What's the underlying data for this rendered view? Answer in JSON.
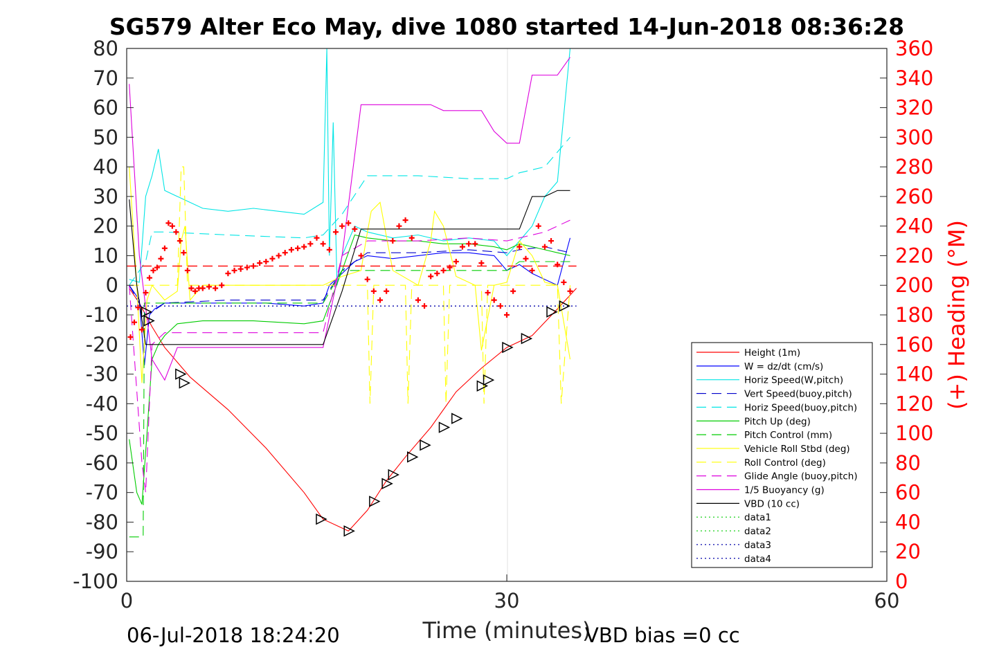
{
  "chart_data": {
    "type": "line",
    "title": "SG579 Alter Eco May, dive 1080 started 14-Jun-2018 08:36:28",
    "xlabel": "Time (minutes)",
    "ylabel": "",
    "ylabel_right": "(+) Heading (°M)",
    "xlim": [
      0,
      60
    ],
    "ylim": [
      -100,
      80
    ],
    "ylim_right": [
      0,
      360
    ],
    "x_ticks": [
      "0",
      "30",
      "60"
    ],
    "y_ticks": [
      "80",
      "70",
      "60",
      "50",
      "40",
      "30",
      "20",
      "10",
      "0",
      "-10",
      "-20",
      "-30",
      "-40",
      "-50",
      "-60",
      "-70",
      "-80",
      "-90",
      "-100"
    ],
    "y_ticks_right": [
      "360",
      "340",
      "320",
      "300",
      "280",
      "260",
      "240",
      "220",
      "200",
      "180",
      "160",
      "140",
      "120",
      "100",
      "80",
      "60",
      "40",
      "20",
      "0"
    ],
    "grid": "vertical at 30",
    "legend_position": "bottom-right",
    "footer_left": "06-Jul-2018 18:24:20",
    "footer_right": "VBD bias =0 cc",
    "series": [
      {
        "name": "Height (1m)",
        "color": "#ff0000",
        "style": "solid",
        "x": [
          0.2,
          1,
          2,
          3,
          5,
          8,
          11,
          14,
          15.5,
          17,
          17.5,
          19,
          20.5,
          22,
          24,
          26,
          28,
          30,
          32,
          34,
          35.5
        ],
        "y": [
          -1,
          -6,
          -14,
          -21,
          -31,
          -42,
          -55,
          -70,
          -79,
          -82,
          -83,
          -76,
          -66,
          -58,
          -48,
          -36,
          -28,
          -21,
          -17,
          -8,
          -1
        ]
      },
      {
        "name": "W = dz/dt (cm/s)",
        "color": "#0000ff",
        "style": "solid",
        "x": [
          0.2,
          1,
          1.4,
          1.8,
          2.2,
          3,
          5,
          8,
          11,
          14,
          15.5,
          16,
          17,
          18,
          19,
          21,
          23,
          25,
          27,
          29,
          30,
          31,
          32,
          33,
          34,
          34.5,
          35
        ],
        "y": [
          0,
          -5,
          -27,
          -10,
          -8,
          -6,
          -6,
          -6,
          -6,
          -7,
          -6,
          0,
          4,
          8,
          10,
          9,
          10,
          11,
          11,
          10,
          5,
          7,
          4,
          2,
          0,
          8,
          16
        ]
      },
      {
        "name": "Horiz Speed(W,pitch)",
        "color": "#00e5e5",
        "style": "solid",
        "x": [
          0.2,
          1,
          1.5,
          2,
          2.5,
          3,
          4,
          6,
          8,
          10,
          12,
          14,
          15.5,
          15.8,
          16,
          16.3,
          16.6,
          17,
          18,
          19,
          21,
          23,
          25,
          27,
          29,
          30,
          31,
          32,
          33,
          34,
          35
        ],
        "y": [
          2,
          1,
          30,
          37,
          46,
          32,
          30,
          26,
          25,
          26,
          25,
          24,
          28,
          80,
          10,
          55,
          0,
          10,
          20,
          18,
          16,
          17,
          15,
          16,
          15,
          10,
          15,
          20,
          30,
          35,
          80
        ]
      },
      {
        "name": "Vert Speed(buoy,pitch)",
        "color": "#0000cc",
        "style": "dashed",
        "x": [
          0.2,
          1.5,
          2,
          3,
          8,
          14,
          15.5,
          17,
          19,
          23,
          27,
          30,
          31,
          33,
          35
        ],
        "y": [
          0,
          -10,
          -9,
          -6,
          -5,
          -5,
          -5,
          5,
          11,
          11,
          12,
          11,
          12,
          13,
          11
        ]
      },
      {
        "name": "Horiz Speed(buoy,pitch)",
        "color": "#00e5e5",
        "style": "dashed",
        "x": [
          0.2,
          1.5,
          2,
          3,
          8,
          14,
          15.5,
          17,
          19,
          23,
          27,
          30,
          31,
          33,
          35
        ],
        "y": [
          0,
          8,
          18,
          18,
          17,
          16,
          17,
          24,
          37,
          37,
          36,
          36,
          38,
          40,
          50
        ]
      },
      {
        "name": "Pitch Up (deg)",
        "color": "#00cc00",
        "style": "solid",
        "x": [
          0.2,
          0.8,
          1.2,
          1.6,
          2,
          2.5,
          3,
          4,
          6,
          10,
          14,
          15.5,
          17,
          18,
          19,
          21,
          23,
          25,
          27,
          29,
          30,
          31,
          32,
          33,
          34,
          35
        ],
        "y": [
          -52,
          -70,
          -74,
          -50,
          -25,
          -20,
          -17,
          -13,
          -12,
          -12,
          -13,
          -12,
          5,
          17,
          16,
          15,
          15,
          14,
          14,
          13,
          12,
          14,
          13,
          12,
          11,
          10
        ]
      },
      {
        "name": "Pitch Control (mm)",
        "color": "#00cc00",
        "style": "dashed",
        "x": [
          0.2,
          1.3,
          1.4,
          2,
          3,
          8,
          14,
          15.5,
          17,
          18,
          19,
          23,
          27,
          30,
          31,
          33,
          35
        ],
        "y": [
          -85,
          -85,
          -6,
          -6,
          -6,
          -6,
          -6,
          -6,
          5,
          5,
          5,
          5,
          5,
          5,
          8,
          8,
          8
        ]
      },
      {
        "name": "Vehicle Roll Stbd (deg)",
        "color": "#ffff00",
        "style": "solid",
        "x": [
          0.2,
          0.8,
          1.2,
          1.6,
          2,
          3,
          4,
          4.3,
          4.6,
          5,
          6,
          10,
          14,
          15.5,
          17,
          18.5,
          19,
          19.3,
          20,
          21,
          23,
          24,
          24.3,
          25,
          26,
          27.5,
          28,
          29,
          30,
          31,
          32,
          33,
          34,
          35
        ],
        "y": [
          40,
          0,
          -33,
          -5,
          0,
          -5,
          -2,
          15,
          20,
          -5,
          0,
          0,
          0,
          0,
          3,
          5,
          18,
          25,
          28,
          5,
          0,
          15,
          25,
          20,
          3,
          0,
          -22,
          0,
          1,
          15,
          10,
          1,
          0,
          -25
        ]
      },
      {
        "name": "Roll Control (deg)",
        "color": "#ffff00",
        "style": "dashed",
        "x": [
          0.2,
          1,
          2,
          4,
          4.3,
          4.5,
          4.8,
          6,
          10,
          14,
          15.5,
          17,
          19,
          19.2,
          19.5,
          21,
          22,
          22.2,
          22.5,
          24,
          25,
          25.2,
          25.5,
          27,
          28,
          28.2,
          28.5,
          30,
          31,
          33,
          34,
          34.3,
          35
        ],
        "y": [
          0,
          0,
          0,
          0,
          40,
          40,
          0,
          0,
          0,
          0,
          0,
          0,
          0,
          -40,
          0,
          0,
          0,
          -40,
          0,
          0,
          0,
          -40,
          0,
          0,
          0,
          -40,
          0,
          0,
          0,
          0,
          0,
          -40,
          0
        ]
      },
      {
        "name": "Glide Angle (buoy,pitch)",
        "color": "#dd00dd",
        "style": "dashed",
        "x": [
          0.2,
          1.2,
          1.5,
          2,
          3,
          8,
          14,
          15.5,
          17,
          19,
          23,
          27,
          30,
          31,
          33,
          35
        ],
        "y": [
          0,
          -60,
          -70,
          -20,
          -16,
          -16,
          -16,
          -16,
          10,
          15,
          15,
          16,
          15,
          16,
          18,
          22
        ]
      },
      {
        "name": "1/5 Buoyancy (g)",
        "color": "#dd00dd",
        "style": "solid",
        "x": [
          0.2,
          1,
          2,
          3,
          4,
          8,
          14,
          15.5,
          17,
          18.5,
          20,
          24,
          25,
          28,
          29,
          30,
          31,
          32,
          34,
          35
        ],
        "y": [
          68,
          10,
          -25,
          -32,
          -21,
          -21,
          -21,
          -21,
          10,
          61,
          61,
          61,
          59,
          59,
          52,
          48,
          48,
          71,
          71,
          77
        ]
      },
      {
        "name": "VBD (10 cc)",
        "color": "#000000",
        "style": "solid",
        "x": [
          0.2,
          0.8,
          1.5,
          3,
          8,
          14,
          15.5,
          17,
          18.5,
          20,
          25,
          30,
          31,
          32,
          33,
          34,
          35
        ],
        "y": [
          29,
          0,
          -20,
          -20,
          -20,
          -20,
          -20,
          -2,
          19,
          19,
          19,
          19,
          19,
          30,
          30,
          32,
          32
        ]
      },
      {
        "name": "data1",
        "color": "#00cc00",
        "style": "dotted",
        "x": [],
        "y": []
      },
      {
        "name": "data2",
        "color": "#00cc00",
        "style": "dotted",
        "x": [],
        "y": []
      },
      {
        "name": "data3",
        "color": "#0000aa",
        "style": "dotted",
        "x": [],
        "y": []
      },
      {
        "name": "data4",
        "color": "#0000aa",
        "style": "dotted",
        "x": [],
        "y": []
      }
    ],
    "heading_points": {
      "color": "#ff0000",
      "axis": "right",
      "x": [
        0.3,
        0.6,
        0.9,
        1.2,
        1.5,
        1.8,
        2.1,
        2.4,
        2.7,
        3.0,
        3.3,
        3.6,
        3.9,
        4.2,
        4.5,
        4.8,
        5.1,
        5.4,
        5.7,
        6.0,
        6.5,
        7.0,
        7.5,
        8.0,
        8.5,
        9.0,
        9.5,
        10.0,
        10.5,
        11.0,
        11.5,
        12.0,
        12.5,
        13.0,
        13.5,
        14.0,
        14.5,
        15.0,
        15.5,
        16.0,
        16.5,
        17.0,
        17.5,
        18.0,
        18.5,
        19.0,
        19.5,
        20.0,
        20.5,
        21.0,
        21.5,
        22.0,
        22.5,
        23.0,
        23.5,
        24.0,
        24.5,
        25.0,
        25.5,
        26.0,
        26.5,
        27.0,
        27.5,
        28.0,
        28.5,
        29.0,
        29.5,
        30.0,
        30.5,
        31.0,
        31.5,
        32.0,
        32.5,
        33.0,
        33.5,
        34.0,
        34.5,
        35.0
      ],
      "y": [
        165,
        175,
        185,
        170,
        195,
        205,
        210,
        212,
        218,
        225,
        242,
        240,
        236,
        230,
        222,
        210,
        198,
        196,
        198,
        198,
        199,
        198,
        200,
        208,
        210,
        211,
        212,
        213,
        215,
        216,
        218,
        220,
        222,
        224,
        225,
        226,
        228,
        232,
        228,
        224,
        236,
        240,
        242,
        238,
        220,
        204,
        196,
        190,
        196,
        230,
        240,
        244,
        232,
        190,
        186,
        206,
        208,
        210,
        212,
        216,
        226,
        228,
        228,
        215,
        195,
        190,
        186,
        180,
        196,
        226,
        218,
        210,
        240,
        226,
        230,
        214,
        202,
        196
      ]
    },
    "dashed_hlines": [
      {
        "y": 6.5,
        "color": "#ff0000",
        "style": "dashed",
        "x": [
          0,
          35.5
        ]
      },
      {
        "y": -7,
        "color": "#0000aa",
        "style": "dotted",
        "x": [
          0,
          35.5
        ]
      }
    ],
    "markers": {
      "shape": "triangle",
      "color": "#000000",
      "x": [
        1.5,
        1.7,
        4.2,
        4.5,
        15.3,
        17.5,
        19.5,
        20.5,
        21.0,
        22.5,
        23.5,
        25.0,
        26.0,
        28.0,
        28.5,
        30.0,
        31.5,
        33.5,
        34.5
      ],
      "y": [
        -9,
        -12,
        -30,
        -33,
        -79,
        -83,
        -73,
        -67,
        -64,
        -58,
        -54,
        -48,
        -45,
        -34,
        -32,
        -21,
        -18,
        -9,
        -7
      ]
    }
  }
}
